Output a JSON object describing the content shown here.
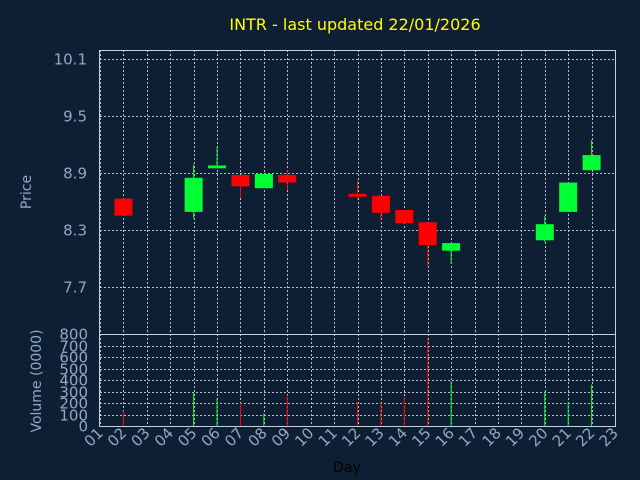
{
  "chart_data": [
    {
      "type": "candlestick",
      "title": "INTR - last updated 22/01/2026",
      "ylabel": "Price",
      "ylim": [
        7.2,
        10.2
      ],
      "y_ticks": [
        7.7,
        8.3,
        8.9,
        9.5,
        10.1
      ],
      "y_tick_labels": [
        "7.7",
        "8.3",
        "8.9",
        "9.5",
        "10.1"
      ],
      "grid": true,
      "candles": [
        {
          "day": "02",
          "open": 8.63,
          "close": 8.45,
          "high": 8.63,
          "low": 8.45
        },
        {
          "day": "05",
          "open": 8.49,
          "close": 8.85,
          "high": 8.99,
          "low": 8.42
        },
        {
          "day": "06",
          "open": 8.95,
          "close": 8.98,
          "high": 9.18,
          "low": 8.95
        },
        {
          "day": "07",
          "open": 8.88,
          "close": 8.76,
          "high": 8.88,
          "low": 8.64
        },
        {
          "day": "08",
          "open": 8.74,
          "close": 8.89,
          "high": 8.89,
          "low": 8.74
        },
        {
          "day": "09",
          "open": 8.88,
          "close": 8.8,
          "high": 8.93,
          "low": 8.72
        },
        {
          "day": "12",
          "open": 8.68,
          "close": 8.65,
          "high": 8.82,
          "low": 8.62
        },
        {
          "day": "13",
          "open": 8.66,
          "close": 8.48,
          "high": 8.66,
          "low": 8.4
        },
        {
          "day": "14",
          "open": 8.51,
          "close": 8.37,
          "high": 8.51,
          "low": 8.37
        },
        {
          "day": "15",
          "open": 8.38,
          "close": 8.14,
          "high": 8.38,
          "low": 7.92
        },
        {
          "day": "16",
          "open": 8.08,
          "close": 8.16,
          "high": 8.16,
          "low": 7.94
        },
        {
          "day": "20",
          "open": 8.19,
          "close": 8.36,
          "high": 8.45,
          "low": 8.17
        },
        {
          "day": "21",
          "open": 8.49,
          "close": 8.8,
          "high": 8.8,
          "low": 8.49
        },
        {
          "day": "22",
          "open": 8.93,
          "close": 9.09,
          "high": 9.25,
          "low": 8.93
        }
      ],
      "colors": {
        "up": "#00ff33",
        "down": "#ff0000",
        "background": "#0f1f33",
        "title": "#ffff00",
        "tick": "#8fa8c8",
        "grid": "#c8d0dc"
      }
    },
    {
      "type": "bar",
      "ylabel": "Volume (0000)",
      "xlabel": "Day",
      "ylim": [
        0,
        800
      ],
      "y_ticks": [
        0,
        100,
        200,
        300,
        400,
        500,
        600,
        700,
        800
      ],
      "x_categories": [
        "01",
        "02",
        "03",
        "04",
        "05",
        "06",
        "07",
        "08",
        "09",
        "10",
        "11",
        "12",
        "13",
        "14",
        "15",
        "16",
        "17",
        "18",
        "19",
        "20",
        "21",
        "22",
        "23"
      ],
      "grid": true,
      "bars": [
        {
          "day": "02",
          "value": 130,
          "direction": "down"
        },
        {
          "day": "05",
          "value": 290,
          "direction": "up"
        },
        {
          "day": "06",
          "value": 240,
          "direction": "up"
        },
        {
          "day": "07",
          "value": 200,
          "direction": "down"
        },
        {
          "day": "08",
          "value": 110,
          "direction": "up"
        },
        {
          "day": "09",
          "value": 270,
          "direction": "down"
        },
        {
          "day": "12",
          "value": 210,
          "direction": "down"
        },
        {
          "day": "13",
          "value": 210,
          "direction": "down"
        },
        {
          "day": "14",
          "value": 250,
          "direction": "down"
        },
        {
          "day": "15",
          "value": 770,
          "direction": "down"
        },
        {
          "day": "16",
          "value": 390,
          "direction": "up"
        },
        {
          "day": "20",
          "value": 300,
          "direction": "up"
        },
        {
          "day": "21",
          "value": 210,
          "direction": "up"
        },
        {
          "day": "22",
          "value": 360,
          "direction": "up"
        }
      ]
    }
  ]
}
